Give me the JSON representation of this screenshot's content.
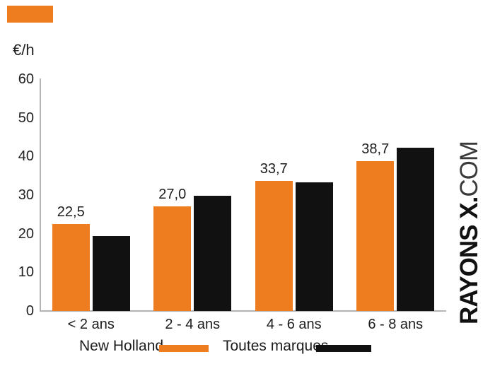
{
  "brand_mark": {
    "color": "#ED7D1F"
  },
  "chart": {
    "unit_label": "€/h"
  },
  "legend": {
    "items": [
      {
        "label": "New Holland",
        "color": "#ED7D1F"
      },
      {
        "label": "Toutes marques",
        "color": "#111111"
      }
    ]
  },
  "watermark": {
    "bold": "RAYONS X.",
    "light": "COM"
  },
  "chart_data": {
    "type": "bar",
    "title": "",
    "ylabel": "€/h",
    "xlabel": "",
    "ylim": [
      0,
      60
    ],
    "y_ticks": [
      0,
      10,
      20,
      30,
      40,
      50,
      60
    ],
    "grid": false,
    "legend_position": "bottom",
    "decimal_separator": ",",
    "categories": [
      "< 2 ans",
      "2 - 4 ans",
      "4 - 6 ans",
      "6 - 8 ans"
    ],
    "series": [
      {
        "name": "New Holland",
        "color": "#ED7D1F",
        "values": [
          22.5,
          27.0,
          33.7,
          38.7
        ],
        "data_labels": [
          "22,5",
          "27,0",
          "33,7",
          "38,7"
        ]
      },
      {
        "name": "Toutes marques",
        "color": "#111111",
        "values": [
          19.4,
          29.8,
          33.3,
          42.3
        ],
        "data_labels": null
      }
    ]
  }
}
